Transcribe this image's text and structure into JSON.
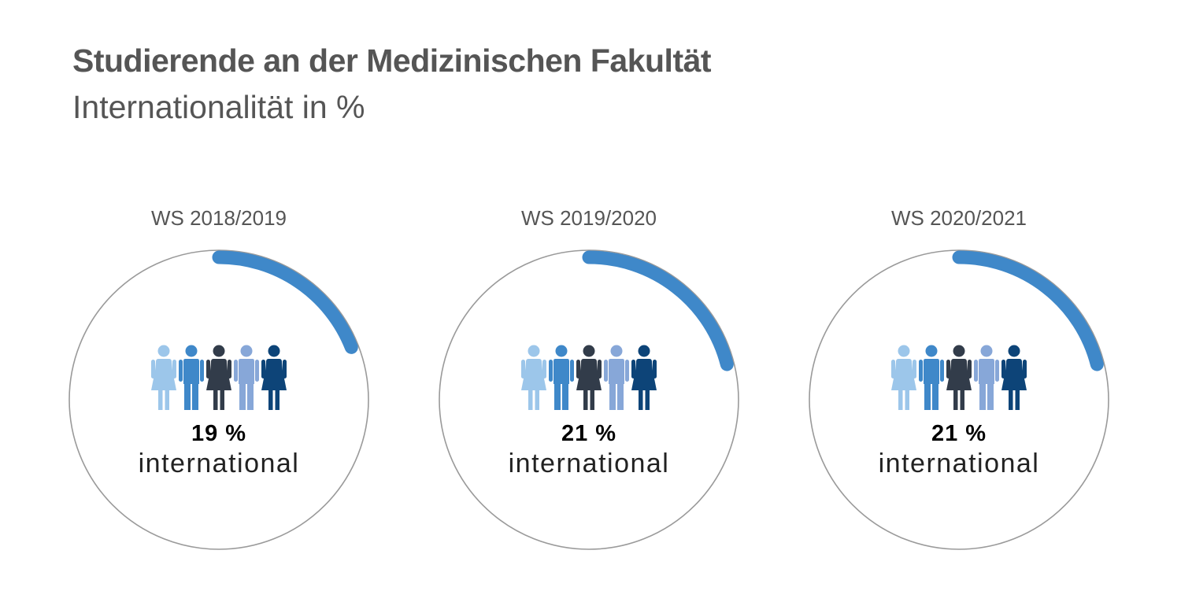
{
  "title": "Studierende an der Medizinischen Fakultät",
  "subtitle": "Internationalität in %",
  "colors": {
    "arc": "#3f88c9",
    "ring": "#9a9a9a",
    "people": [
      "#9cc6ea",
      "#3f88c9",
      "#323c4a",
      "#87a7d8",
      "#0d4478"
    ]
  },
  "chart_data": [
    {
      "type": "pie",
      "category": "WS 2018/2019",
      "value": 19,
      "value_label": "19 %",
      "label": "international"
    },
    {
      "type": "pie",
      "category": "WS 2019/2020",
      "value": 21,
      "value_label": "21 %",
      "label": "international"
    },
    {
      "type": "pie",
      "category": "WS 2020/2021",
      "value": 21,
      "value_label": "21 %",
      "label": "international"
    }
  ]
}
